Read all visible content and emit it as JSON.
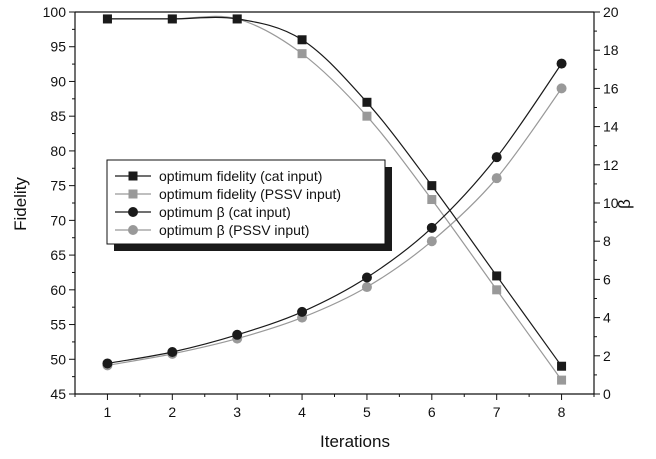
{
  "chart_data": {
    "type": "line",
    "xlabel": "Iterations",
    "ylabel": "Fidelity",
    "y2label": "β",
    "x": [
      1,
      2,
      3,
      4,
      5,
      6,
      7,
      8
    ],
    "xlim": [
      0.5,
      8.5
    ],
    "ylim": [
      45,
      100
    ],
    "y2lim": [
      0,
      20
    ],
    "xticks": [
      1,
      2,
      3,
      4,
      5,
      6,
      7,
      8
    ],
    "yticks": [
      45,
      50,
      55,
      60,
      65,
      70,
      75,
      80,
      85,
      90,
      95,
      100
    ],
    "y2ticks": [
      0,
      2,
      4,
      6,
      8,
      10,
      12,
      14,
      16,
      18,
      20
    ],
    "grid": false,
    "legend_position": "center-left",
    "series": [
      {
        "name": "optimum fidelity (cat input)",
        "axis": "left",
        "marker": "square",
        "color": "#1a1a1a",
        "values": [
          99,
          99,
          99,
          96,
          87,
          75,
          62,
          49
        ]
      },
      {
        "name": "optimum fidelity (PSSV input)",
        "axis": "left",
        "marker": "square",
        "color": "#999999",
        "values": [
          99,
          99,
          99,
          94,
          85,
          73,
          60,
          47
        ]
      },
      {
        "name": "optimum β (cat input)",
        "axis": "right",
        "marker": "circle",
        "color": "#1a1a1a",
        "values": [
          1.6,
          2.2,
          3.1,
          4.3,
          6.1,
          8.7,
          12.4,
          17.3
        ]
      },
      {
        "name": "optimum β (PSSV input)",
        "axis": "right",
        "marker": "circle",
        "color": "#999999",
        "values": [
          1.5,
          2.1,
          2.9,
          4.0,
          5.6,
          8.0,
          11.3,
          16.0
        ]
      }
    ]
  }
}
